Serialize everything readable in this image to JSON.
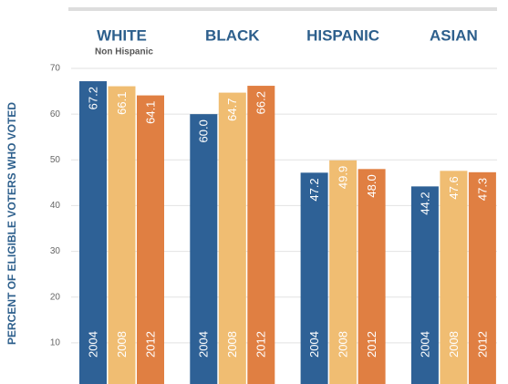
{
  "chart_data": {
    "type": "bar",
    "y_label": "PERCENT OF ELIGIBLE VOTERS WHO VOTED",
    "categories": [
      "WHITE",
      "BLACK",
      "HISPANIC",
      "ASIAN"
    ],
    "annotation": "Non Hispanic",
    "series": [
      {
        "name": "2004",
        "color": "#2e6196",
        "values": [
          67.2,
          60.0,
          47.2,
          44.2
        ],
        "value_labels": [
          "67.2",
          "60.0",
          "47.2",
          "44.2"
        ]
      },
      {
        "name": "2008",
        "color": "#f0bd72",
        "values": [
          66.1,
          64.7,
          49.9,
          47.6
        ],
        "value_labels": [
          "66.1",
          "64.7",
          "49.9",
          "47.6"
        ]
      },
      {
        "name": "2012",
        "color": "#e07f42",
        "values": [
          64.1,
          66.2,
          48.0,
          47.3
        ],
        "value_labels": [
          "64.1",
          "66.2",
          "48.0",
          "47.3"
        ]
      }
    ],
    "ylim": [
      0,
      70
    ],
    "yticks": [
      10,
      20,
      30,
      40,
      50,
      60,
      70
    ],
    "grid": true
  }
}
